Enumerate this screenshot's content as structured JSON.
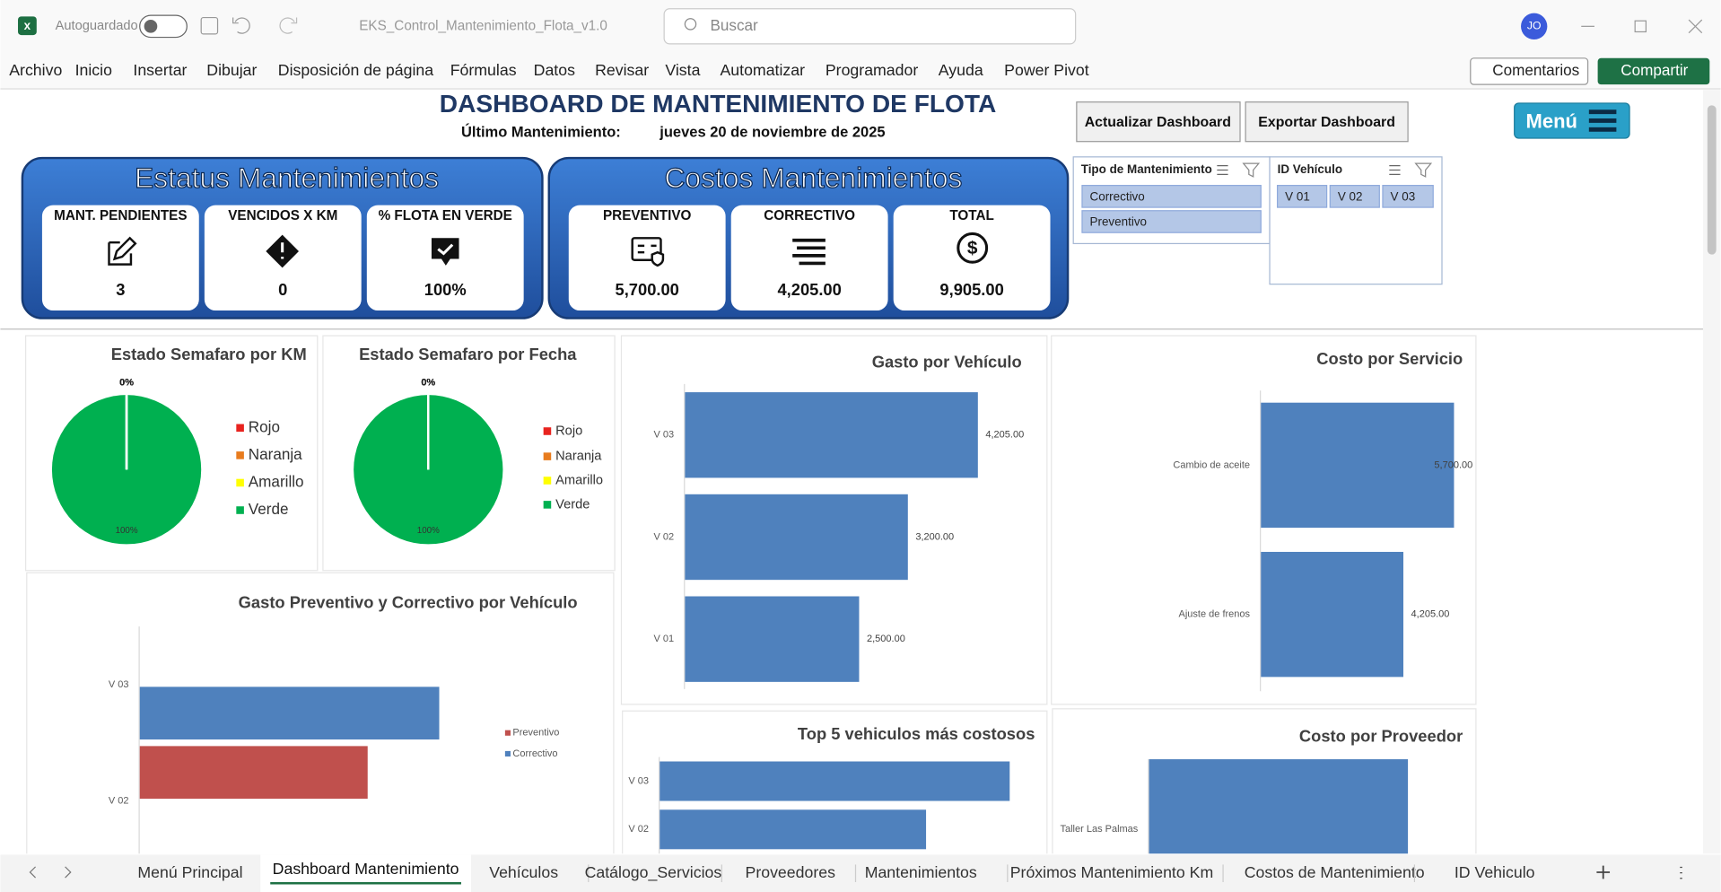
{
  "title_bar": {
    "autosave": "Autoguardado",
    "file_name": "EKS_Control_Mantenimiento_Flota_v1.0",
    "search": "Buscar",
    "user": "JO"
  },
  "menu": [
    "Archivo",
    "Inicio",
    "Insertar",
    "Dibujar",
    "Disposición de página",
    "Fórmulas",
    "Datos",
    "Revisar",
    "Vista",
    "Automatizar",
    "Programador",
    "Ayuda",
    "Power Pivot"
  ],
  "ribbon_buttons": {
    "comments": "Comentarios",
    "share": "Compartir"
  },
  "dashboard": {
    "title": "DASHBOARD DE MANTENIMIENTO DE FLOTA",
    "last_label": "Último Mantenimiento:",
    "last_date": "jueves 20 de noviembre de 2025",
    "update_button": "Actualizar Dashboard",
    "export_button": "Exportar Dashboard",
    "menu_button": "Menú"
  },
  "status_panel": {
    "title": "Estatus Mantenimientos",
    "cards": [
      {
        "label": "MANT. PENDIENTES",
        "value": "3"
      },
      {
        "label": "VENCIDOS X KM",
        "value": "0"
      },
      {
        "label": "% FLOTA EN VERDE",
        "value": "100%"
      }
    ]
  },
  "cost_panel": {
    "title": "Costos Mantenimientos",
    "cards": [
      {
        "label": "PREVENTIVO",
        "value": "5,700.00"
      },
      {
        "label": "CORRECTIVO",
        "value": "4,205.00"
      },
      {
        "label": "TOTAL",
        "value": "9,905.00"
      }
    ]
  },
  "slicers": [
    {
      "title": "Tipo de Mantenimiento",
      "items": [
        "Correctivo",
        "Preventivo"
      ]
    },
    {
      "title": "ID Vehículo",
      "items": [
        "V 01",
        "V 02",
        "V 03"
      ]
    }
  ],
  "charts": [
    {
      "type": "pie",
      "title": "Estado Semafaro por KM",
      "categories": [
        "Rojo",
        "Naranja",
        "Amarillo",
        "Verde"
      ],
      "values": [
        0,
        0,
        0,
        100
      ],
      "value_labels": [
        "0%",
        "0%",
        "0%",
        "100%"
      ],
      "colors": [
        "#e8231f",
        "#e87c1e",
        "#ffff00",
        "#00b050"
      ],
      "legend": "right"
    },
    {
      "type": "pie",
      "title": "Estado Semafaro por Fecha",
      "categories": [
        "Rojo",
        "Naranja",
        "Amarillo",
        "Verde"
      ],
      "values": [
        0,
        0,
        0,
        100
      ],
      "value_labels": [
        "0%",
        "0%",
        "0%",
        "100%"
      ],
      "colors": [
        "#e8231f",
        "#e87c1e",
        "#ffff00",
        "#00b050"
      ],
      "legend": "right"
    },
    {
      "type": "hbar",
      "title": "Gasto por Vehículo",
      "categories": [
        "V 03",
        "V 02",
        "V 01"
      ],
      "values": [
        4205,
        3200,
        2500
      ],
      "value_labels": [
        "4,205.00",
        "3,200.00",
        "2,500.00"
      ],
      "color": "#4f81bd"
    },
    {
      "type": "hbar",
      "title": "Costo por Servicio",
      "categories": [
        "Cambio de aceite",
        "Ajuste de frenos"
      ],
      "values": [
        5700,
        4205
      ],
      "value_labels": [
        "5,700.00",
        "4,205.00"
      ],
      "color": "#4f81bd"
    },
    {
      "type": "hbar",
      "title": "Gasto Preventivo y Correctivo por Vehículo",
      "categories": [
        "V 03",
        "V 02"
      ],
      "series": [
        {
          "name": "Preventivo",
          "color": "#c0504d",
          "values": [
            0,
            3200
          ]
        },
        {
          "name": "Correctivo",
          "color": "#4f81bd",
          "values": [
            4205,
            0
          ]
        }
      ],
      "legend": "right"
    },
    {
      "type": "hbar",
      "title": "Top 5 vehiculos más costosos",
      "categories": [
        "V 03",
        "V 02"
      ],
      "values": [
        4205,
        3200
      ],
      "color": "#4f81bd"
    },
    {
      "type": "hbar",
      "title": "Costo por Proveedor",
      "categories": [
        "Taller Las Palmas"
      ],
      "values": [
        9905
      ],
      "color": "#4f81bd"
    }
  ],
  "sheet_tabs": [
    "Menú Principal",
    "Dashboard Mantenimiento",
    "Vehículos",
    "Catálogo_Servicios",
    "Proveedores",
    "Mantenimientos",
    "Próximos Mantenimiento Km",
    "Costos de Mantenimiento",
    "ID Vehiculo"
  ]
}
